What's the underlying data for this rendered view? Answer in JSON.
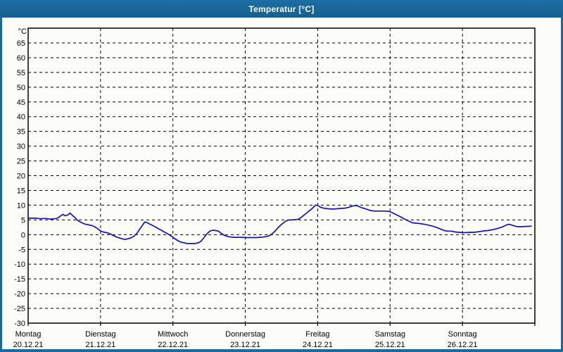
{
  "window": {
    "title": "Temperatur [°C]"
  },
  "colors": {
    "title_bar": "#19699E",
    "title_text": "#FFFFFF",
    "window_border": "#19699E",
    "content_background": "#FDFDF8",
    "grid": "#000000",
    "axis_text": "#000000",
    "line": "#1212BE"
  },
  "chart_data": {
    "type": "line",
    "title": "Temperatur [°C]",
    "y_unit": "°C",
    "y_min": -30,
    "y_max": 65,
    "y_step": 5,
    "grid": "dashed",
    "legend": "none",
    "x_days": [
      {
        "name": "Montag",
        "date": "20.12.21"
      },
      {
        "name": "Dienstag",
        "date": "21.12.21"
      },
      {
        "name": "Mittwoch",
        "date": "22.12.21"
      },
      {
        "name": "Donnerstag",
        "date": "23.12.21"
      },
      {
        "name": "Freitag",
        "date": "24.12.21"
      },
      {
        "name": "Samstag",
        "date": "25.12.21"
      },
      {
        "name": "Sonntag",
        "date": "26.12.21"
      }
    ],
    "series": [
      {
        "name": "Temperatur",
        "color": "#1212BE",
        "points_day_temp": [
          [
            0.0,
            5.6
          ],
          [
            0.06,
            5.6
          ],
          [
            0.1,
            5.6
          ],
          [
            0.14,
            5.5
          ],
          [
            0.17,
            5.4
          ],
          [
            0.21,
            5.5
          ],
          [
            0.25,
            5.5
          ],
          [
            0.29,
            5.3
          ],
          [
            0.33,
            5.3
          ],
          [
            0.36,
            5.4
          ],
          [
            0.4,
            5.5
          ],
          [
            0.44,
            6.2
          ],
          [
            0.48,
            6.9
          ],
          [
            0.51,
            6.4
          ],
          [
            0.55,
            6.7
          ],
          [
            0.58,
            7.3
          ],
          [
            0.61,
            6.6
          ],
          [
            0.65,
            5.7
          ],
          [
            0.68,
            4.9
          ],
          [
            0.72,
            4.3
          ],
          [
            0.76,
            3.8
          ],
          [
            0.8,
            3.5
          ],
          [
            0.84,
            3.3
          ],
          [
            0.88,
            3.1
          ],
          [
            0.91,
            2.8
          ],
          [
            0.95,
            2.2
          ],
          [
            0.98,
            1.6
          ],
          [
            1.02,
            1.0
          ],
          [
            1.06,
            0.8
          ],
          [
            1.1,
            0.6
          ],
          [
            1.14,
            0.2
          ],
          [
            1.18,
            -0.3
          ],
          [
            1.22,
            -0.8
          ],
          [
            1.26,
            -1.1
          ],
          [
            1.3,
            -1.4
          ],
          [
            1.34,
            -1.6
          ],
          [
            1.38,
            -1.4
          ],
          [
            1.42,
            -1.1
          ],
          [
            1.46,
            -0.6
          ],
          [
            1.5,
            0.4
          ],
          [
            1.54,
            1.8
          ],
          [
            1.58,
            3.2
          ],
          [
            1.61,
            4.3
          ],
          [
            1.64,
            4.1
          ],
          [
            1.68,
            3.6
          ],
          [
            1.72,
            3.1
          ],
          [
            1.76,
            2.6
          ],
          [
            1.8,
            2.0
          ],
          [
            1.84,
            1.5
          ],
          [
            1.88,
            0.9
          ],
          [
            1.92,
            0.4
          ],
          [
            1.96,
            -0.2
          ],
          [
            2.0,
            -0.9
          ],
          [
            2.04,
            -1.6
          ],
          [
            2.08,
            -2.2
          ],
          [
            2.12,
            -2.6
          ],
          [
            2.16,
            -2.8
          ],
          [
            2.2,
            -3.0
          ],
          [
            2.25,
            -3.0
          ],
          [
            2.3,
            -3.0
          ],
          [
            2.35,
            -2.8
          ],
          [
            2.39,
            -2.2
          ],
          [
            2.43,
            -1.0
          ],
          [
            2.47,
            0.3
          ],
          [
            2.51,
            1.2
          ],
          [
            2.55,
            1.5
          ],
          [
            2.59,
            1.4
          ],
          [
            2.63,
            1.2
          ],
          [
            2.67,
            0.4
          ],
          [
            2.71,
            -0.2
          ],
          [
            2.75,
            -0.6
          ],
          [
            2.8,
            -0.8
          ],
          [
            2.85,
            -0.9
          ],
          [
            2.9,
            -0.9
          ],
          [
            2.95,
            -0.9
          ],
          [
            3.0,
            -1.0
          ],
          [
            3.05,
            -1.0
          ],
          [
            3.1,
            -1.0
          ],
          [
            3.15,
            -1.0
          ],
          [
            3.2,
            -0.9
          ],
          [
            3.25,
            -0.8
          ],
          [
            3.3,
            -0.6
          ],
          [
            3.35,
            -0.1
          ],
          [
            3.4,
            0.9
          ],
          [
            3.44,
            2.0
          ],
          [
            3.48,
            3.0
          ],
          [
            3.52,
            3.9
          ],
          [
            3.56,
            4.6
          ],
          [
            3.6,
            5.0
          ],
          [
            3.65,
            5.0
          ],
          [
            3.7,
            5.1
          ],
          [
            3.74,
            5.3
          ],
          [
            3.78,
            6.0
          ],
          [
            3.83,
            7.0
          ],
          [
            3.87,
            7.8
          ],
          [
            3.91,
            8.6
          ],
          [
            3.95,
            9.5
          ],
          [
            3.97,
            10.0
          ],
          [
            4.0,
            9.9
          ],
          [
            4.04,
            9.3
          ],
          [
            4.08,
            9.0
          ],
          [
            4.13,
            8.8
          ],
          [
            4.18,
            8.7
          ],
          [
            4.23,
            8.7
          ],
          [
            4.28,
            8.8
          ],
          [
            4.33,
            8.9
          ],
          [
            4.38,
            9.0
          ],
          [
            4.43,
            9.3
          ],
          [
            4.48,
            9.7
          ],
          [
            4.52,
            9.9
          ],
          [
            4.56,
            9.7
          ],
          [
            4.6,
            9.2
          ],
          [
            4.64,
            8.9
          ],
          [
            4.68,
            8.6
          ],
          [
            4.73,
            8.2
          ],
          [
            4.78,
            8.0
          ],
          [
            4.83,
            8.0
          ],
          [
            4.88,
            8.0
          ],
          [
            4.93,
            8.0
          ],
          [
            4.98,
            7.9
          ],
          [
            5.02,
            7.6
          ],
          [
            5.06,
            7.1
          ],
          [
            5.1,
            6.6
          ],
          [
            5.15,
            6.0
          ],
          [
            5.2,
            5.3
          ],
          [
            5.25,
            4.7
          ],
          [
            5.3,
            4.1
          ],
          [
            5.35,
            3.9
          ],
          [
            5.4,
            3.8
          ],
          [
            5.45,
            3.6
          ],
          [
            5.5,
            3.4
          ],
          [
            5.55,
            3.1
          ],
          [
            5.6,
            2.8
          ],
          [
            5.65,
            2.4
          ],
          [
            5.7,
            1.9
          ],
          [
            5.75,
            1.4
          ],
          [
            5.8,
            1.2
          ],
          [
            5.85,
            1.2
          ],
          [
            5.9,
            0.9
          ],
          [
            5.95,
            0.8
          ],
          [
            6.0,
            0.7
          ],
          [
            6.05,
            0.7
          ],
          [
            6.1,
            0.8
          ],
          [
            6.15,
            0.8
          ],
          [
            6.2,
            0.9
          ],
          [
            6.25,
            1.1
          ],
          [
            6.3,
            1.3
          ],
          [
            6.35,
            1.4
          ],
          [
            6.4,
            1.6
          ],
          [
            6.45,
            1.9
          ],
          [
            6.5,
            2.2
          ],
          [
            6.55,
            2.6
          ],
          [
            6.6,
            3.2
          ],
          [
            6.63,
            3.5
          ],
          [
            6.66,
            3.4
          ],
          [
            6.7,
            3.1
          ],
          [
            6.74,
            2.8
          ],
          [
            6.78,
            2.7
          ],
          [
            6.82,
            2.7
          ],
          [
            6.86,
            2.8
          ],
          [
            6.9,
            2.8
          ],
          [
            6.95,
            2.9
          ]
        ]
      }
    ]
  }
}
